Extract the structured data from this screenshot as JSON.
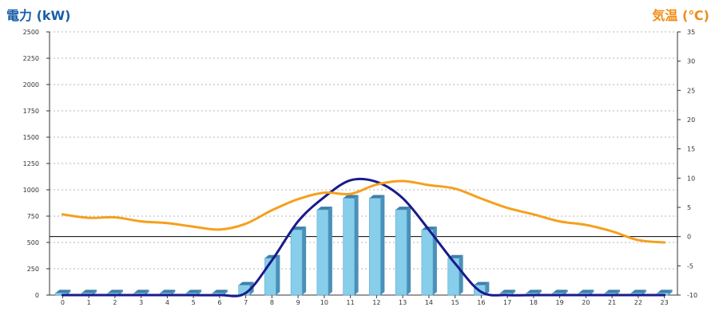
{
  "chart_data": {
    "type": "bar",
    "title_left": "電力 (kW)",
    "title_right": "気温 (℃)",
    "categories": [
      "0",
      "1",
      "2",
      "3",
      "4",
      "5",
      "6",
      "7",
      "8",
      "9",
      "10",
      "11",
      "12",
      "13",
      "14",
      "15",
      "16",
      "17",
      "18",
      "19",
      "20",
      "21",
      "22",
      "23"
    ],
    "y_left": {
      "ticks": [
        "2500",
        "2250",
        "2000",
        "1750",
        "1500",
        "1250",
        "1000",
        "750",
        "500",
        "250",
        "0"
      ],
      "range": [
        0,
        2500
      ]
    },
    "y_right": {
      "ticks": [
        "35",
        "30",
        "25",
        "20",
        "15",
        "10",
        "5",
        "0",
        "-5",
        "-10"
      ],
      "range": [
        -10,
        35
      ]
    },
    "grid": true,
    "series": [
      {
        "type": "bar",
        "axis": "left",
        "color": "#87ceeb",
        "values": [
          20,
          20,
          20,
          20,
          20,
          20,
          20,
          95,
          350,
          620,
          810,
          920,
          920,
          810,
          620,
          350,
          95,
          20,
          20,
          20,
          20,
          20,
          20,
          20
        ]
      },
      {
        "type": "line",
        "axis": "left",
        "color": "#1a1a8c",
        "values": [
          0,
          0,
          0,
          0,
          0,
          0,
          0,
          20,
          330,
          700,
          930,
          1090,
          1075,
          920,
          620,
          300,
          30,
          0,
          0,
          0,
          0,
          0,
          0,
          0
        ]
      },
      {
        "type": "line",
        "axis": "right",
        "color": "#f5a01e",
        "values": [
          3.8,
          3.2,
          3.3,
          2.6,
          2.3,
          1.7,
          1.2,
          2.2,
          4.5,
          6.4,
          7.5,
          7.3,
          8.9,
          9.5,
          8.8,
          8.2,
          6.5,
          4.9,
          3.8,
          2.6,
          2.0,
          0.9,
          -0.6,
          -1.0
        ]
      }
    ],
    "reference_line": {
      "axis": "right",
      "value": 0,
      "color": "#000000"
    }
  }
}
